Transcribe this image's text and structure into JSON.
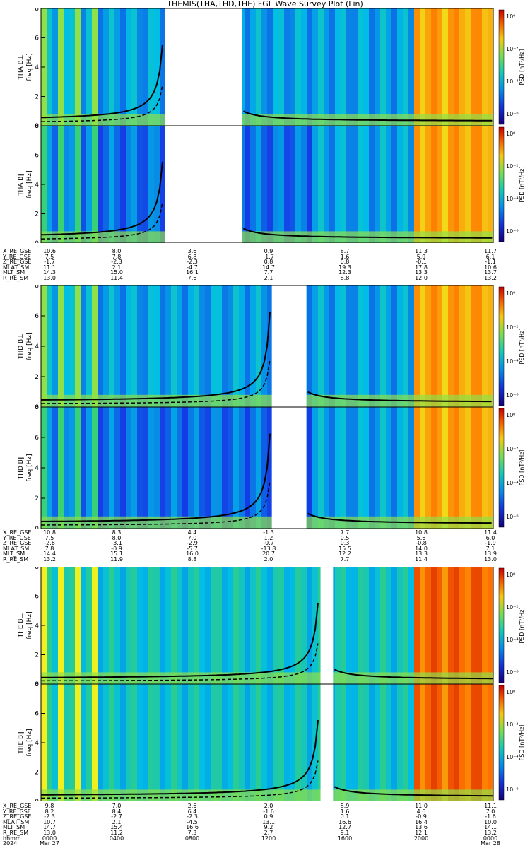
{
  "title": "THEMIS(THA,THD,THE) FGL Wave Survey Plot (Lin)",
  "colorbar_label": "PSD [nT²/Hz]",
  "chart_data": [
    {
      "type": "heatmap",
      "probe": "THA",
      "ylim": [
        0,
        8
      ],
      "yticks": [
        "0",
        "2",
        "4",
        "6",
        "8"
      ],
      "data_gap": [
        "0635",
        "1040"
      ],
      "panels": [
        {
          "label": "THA B⊥",
          "ylabel_freq": "freq [Hz]",
          "colorbar_ticks": [
            "10⁰",
            "10⁻²",
            "10⁻⁴",
            "10⁻⁶"
          ]
        },
        {
          "label": "THA B∥",
          "ylabel_freq": "freq [Hz]",
          "colorbar_ticks": [
            "10⁰",
            "10⁻²",
            "10⁻⁴",
            "10⁻⁶"
          ]
        }
      ],
      "ephemeris_labels": [
        "X_RE_GSE",
        "Y_RE_GSE",
        "Z_RE_GSE",
        "MLAT_SM",
        "MLT_SM",
        "R_RE_SM"
      ],
      "ephemeris_values": [
        [
          "10.6",
          "8.0",
          "3.6",
          "0.9",
          "8.7",
          "11.3",
          "11.7"
        ],
        [
          "7.5",
          "7.8",
          "6.8",
          "-1.7",
          "1.6",
          "5.9",
          "6.1"
        ],
        [
          "-1.7",
          "-2.3",
          "-2.3",
          "0.8",
          "0.8",
          "-0.1",
          "-1.1"
        ],
        [
          "11.1",
          "2.1",
          "-4.7",
          "14.7",
          "19.3",
          "17.8",
          "10.6"
        ],
        [
          "14.3",
          "15.0",
          "16.1",
          "7.7",
          "12.3",
          "13.3",
          "13.7"
        ],
        [
          "13.0",
          "11.4",
          "7.6",
          "2.1",
          "8.8",
          "12.0",
          "13.2"
        ]
      ]
    },
    {
      "type": "heatmap",
      "probe": "THD",
      "ylim": [
        0,
        8
      ],
      "yticks": [
        "0",
        "2",
        "4",
        "6",
        "8"
      ],
      "data_gap": [
        "1215",
        "1405"
      ],
      "panels": [
        {
          "label": "THD B⊥",
          "ylabel_freq": "freq [Hz]",
          "colorbar_ticks": [
            "10⁰",
            "10⁻²",
            "10⁻⁴",
            "10⁻⁶"
          ]
        },
        {
          "label": "THD B∥",
          "ylabel_freq": "freq [Hz]",
          "colorbar_ticks": [
            "10⁰",
            "10⁻²",
            "10⁻⁴",
            "10⁻⁶"
          ]
        }
      ],
      "ephemeris_labels": [
        "X_RE_GSE",
        "Y_RE_GSE",
        "Z_RE_GSE",
        "MLAT_SM",
        "MLT_SM",
        "R_RE_SM"
      ],
      "ephemeris_values": [
        [
          "10.8",
          "8.3",
          "4.4",
          "-1.3",
          "7.7",
          "10.8",
          "11.4"
        ],
        [
          "7.5",
          "8.0",
          "7.0",
          "1.2",
          "0.5",
          "5.6",
          "6.0"
        ],
        [
          "-2.6",
          "-3.1",
          "-2.9",
          "-0.7",
          "0.3",
          "-0.8",
          "-1.9"
        ],
        [
          "7.8",
          "-0.9",
          "-5.7",
          "-13.8",
          "15.5",
          "14.0",
          "7.1"
        ],
        [
          "14.4",
          "15.1",
          "16.0",
          "20.7",
          "12.2",
          "13.3",
          "13.9"
        ],
        [
          "13.2",
          "11.9",
          "8.8",
          "2.0",
          "7.7",
          "11.4",
          "13.0"
        ]
      ]
    },
    {
      "type": "heatmap",
      "probe": "THE",
      "ylim": [
        0,
        8
      ],
      "yticks": [
        "0",
        "2",
        "4",
        "6",
        "8"
      ],
      "data_gap": [
        "1450",
        "1530"
      ],
      "panels": [
        {
          "label": "THE B⊥",
          "ylabel_freq": "freq [Hz]",
          "colorbar_ticks": [
            "10⁰",
            "10⁻²",
            "10⁻⁴",
            "10⁻⁶"
          ]
        },
        {
          "label": "THE B∥",
          "ylabel_freq": "freq [Hz]",
          "colorbar_ticks": [
            "10⁰",
            "10⁻²",
            "10⁻⁴",
            "10⁻⁶"
          ]
        }
      ],
      "ephemeris_labels": [
        "X_RE_GSE",
        "Y_RE_GSE",
        "Z_RE_GSE",
        "MLAT_SM",
        "MLT_SM",
        "R_RE_SM",
        "hhmm",
        "2024"
      ],
      "ephemeris_values": [
        [
          "9.8",
          "7.0",
          "2.6",
          "2.0",
          "8.9",
          "11.0",
          "11.1"
        ],
        [
          "8.2",
          "8.4",
          "6.4",
          "-1.6",
          "1.6",
          "4.6",
          "7.0"
        ],
        [
          "-2.3",
          "-2.7",
          "-2.3",
          "0.9",
          "0.1",
          "-0.9",
          "-1.6"
        ],
        [
          "10.7",
          "2.1",
          "-4.5",
          "13.1",
          "16.6",
          "16.4",
          "10.0"
        ],
        [
          "14.7",
          "15.4",
          "16.6",
          "9.2",
          "12.7",
          "13.6",
          "14.1"
        ],
        [
          "13.0",
          "11.2",
          "7.3",
          "2.7",
          "9.1",
          "12.1",
          "13.2"
        ],
        [
          "0000",
          "0400",
          "0800",
          "1200",
          "1600",
          "2000",
          "0000"
        ],
        [
          "Mar 27",
          "",
          "",
          "",
          "",
          "",
          "Mar 28"
        ]
      ]
    }
  ]
}
